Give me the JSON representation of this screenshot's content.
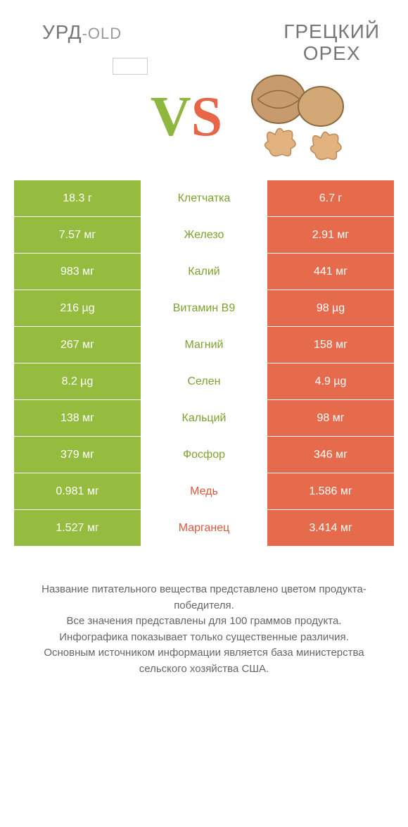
{
  "colors": {
    "green": "#95bb3f",
    "orange": "#e66a4c",
    "text_gray": "#777777",
    "mid_green_text": "#7da130",
    "mid_orange_text": "#d85a3f"
  },
  "header": {
    "left_main": "УРД",
    "left_suffix": "-OLD",
    "right_line1": "ГРЕЦКИЙ",
    "right_line2": "ОРЕХ"
  },
  "vs": {
    "v": "V",
    "s": "S"
  },
  "rows": [
    {
      "left": "18.3 г",
      "mid": "Клетчатка",
      "right": "6.7 г",
      "winner": "left"
    },
    {
      "left": "7.57 мг",
      "mid": "Железо",
      "right": "2.91 мг",
      "winner": "left"
    },
    {
      "left": "983 мг",
      "mid": "Калий",
      "right": "441 мг",
      "winner": "left"
    },
    {
      "left": "216 µg",
      "mid": "Витамин B9",
      "right": "98 µg",
      "winner": "left"
    },
    {
      "left": "267 мг",
      "mid": "Магний",
      "right": "158 мг",
      "winner": "left"
    },
    {
      "left": "8.2 µg",
      "mid": "Селен",
      "right": "4.9 µg",
      "winner": "left"
    },
    {
      "left": "138 мг",
      "mid": "Кальций",
      "right": "98 мг",
      "winner": "left"
    },
    {
      "left": "379 мг",
      "mid": "Фосфор",
      "right": "346 мг",
      "winner": "left"
    },
    {
      "left": "0.981 мг",
      "mid": "Медь",
      "right": "1.586 мг",
      "winner": "right"
    },
    {
      "left": "1.527 мг",
      "mid": "Марганец",
      "right": "3.414 мг",
      "winner": "right"
    }
  ],
  "footer": {
    "line1": "Название питательного вещества представлено цветом продукта-победителя.",
    "line2": "Все значения представлены для 100 граммов продукта.",
    "line3": "Инфографика показывает только существенные различия.",
    "line4": "Основным источником информации является база министерства сельского хозяйства США."
  }
}
